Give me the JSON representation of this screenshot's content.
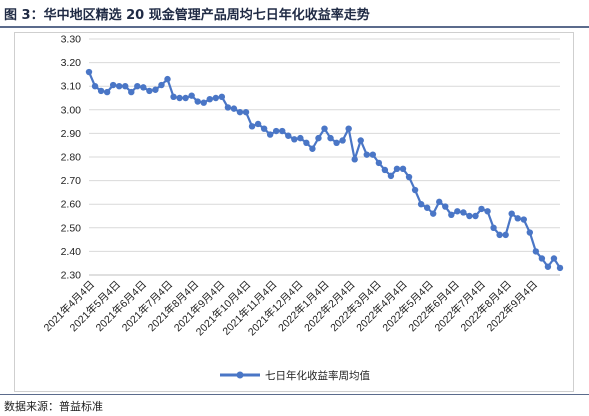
{
  "title": "图 3：华中地区精选 20 现金管理产品周均七日年化收益率走势",
  "source": "数据来源：普益标准",
  "colors": {
    "series": "#4a76c6",
    "grid": "#d9d9d9",
    "rule": "#5b6b8c"
  },
  "chart_data": {
    "type": "line",
    "title": "",
    "xlabel": "",
    "ylabel": "",
    "ylim": [
      2.3,
      3.3
    ],
    "yticks": [
      "3.30",
      "3.20",
      "3.10",
      "3.00",
      "2.90",
      "2.80",
      "2.70",
      "2.60",
      "2.50",
      "2.40",
      "2.30"
    ],
    "grid": true,
    "legend": "bottom",
    "x_tick_labels": [
      "2021年4月4日",
      "2021年5月4日",
      "2021年6月4日",
      "2021年7月4日",
      "2021年8月4日",
      "2021年9月4日",
      "2021年10月4日",
      "2021年11月4日",
      "2021年12月4日",
      "2022年1月4日",
      "2022年2月4日",
      "2022年3月4日",
      "2022年4月4日",
      "2022年5月4日",
      "2022年6月4日",
      "2022年7月4日",
      "2022年8月4日",
      "2022年9月4日"
    ],
    "series": [
      {
        "name": "七日年化收益率周均值",
        "values": [
          3.16,
          3.1,
          3.08,
          3.075,
          3.105,
          3.1,
          3.1,
          3.075,
          3.1,
          3.095,
          3.08,
          3.085,
          3.105,
          3.13,
          3.055,
          3.05,
          3.05,
          3.06,
          3.035,
          3.03,
          3.045,
          3.05,
          3.055,
          3.01,
          3.005,
          2.99,
          2.99,
          2.93,
          2.94,
          2.92,
          2.895,
          2.91,
          2.91,
          2.89,
          2.875,
          2.88,
          2.86,
          2.835,
          2.88,
          2.92,
          2.88,
          2.86,
          2.87,
          2.92,
          2.79,
          2.87,
          2.81,
          2.81,
          2.775,
          2.745,
          2.72,
          2.75,
          2.75,
          2.715,
          2.66,
          2.6,
          2.585,
          2.56,
          2.61,
          2.59,
          2.555,
          2.57,
          2.565,
          2.55,
          2.55,
          2.58,
          2.57,
          2.5,
          2.47,
          2.47,
          2.56,
          2.54,
          2.535,
          2.48,
          2.4,
          2.37,
          2.335,
          2.37,
          2.33
        ]
      }
    ]
  }
}
